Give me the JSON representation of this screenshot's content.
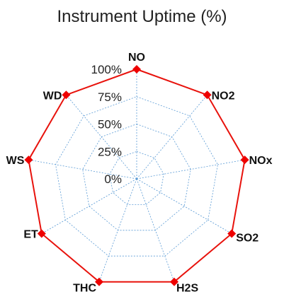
{
  "chart_data": {
    "type": "radar",
    "title": "Instrument Uptime (%)",
    "categories": [
      "NO",
      "NO2",
      "NOx",
      "SO2",
      "H2S",
      "THC",
      "ET",
      "WS",
      "WD"
    ],
    "series": [
      {
        "values": [
          100,
          100,
          100,
          100,
          100,
          100,
          100,
          100,
          100
        ]
      }
    ],
    "rlim": [
      0,
      100
    ],
    "ticks": [
      0,
      25,
      50,
      75,
      100
    ],
    "tick_labels": [
      "0%",
      "25%",
      "50%",
      "75%",
      "100%"
    ],
    "grid": true,
    "legend": "none",
    "colors": {
      "series": "#e8120c",
      "marker": "#ee0000",
      "grid": "#5b9bd5",
      "text": "#222222"
    }
  }
}
